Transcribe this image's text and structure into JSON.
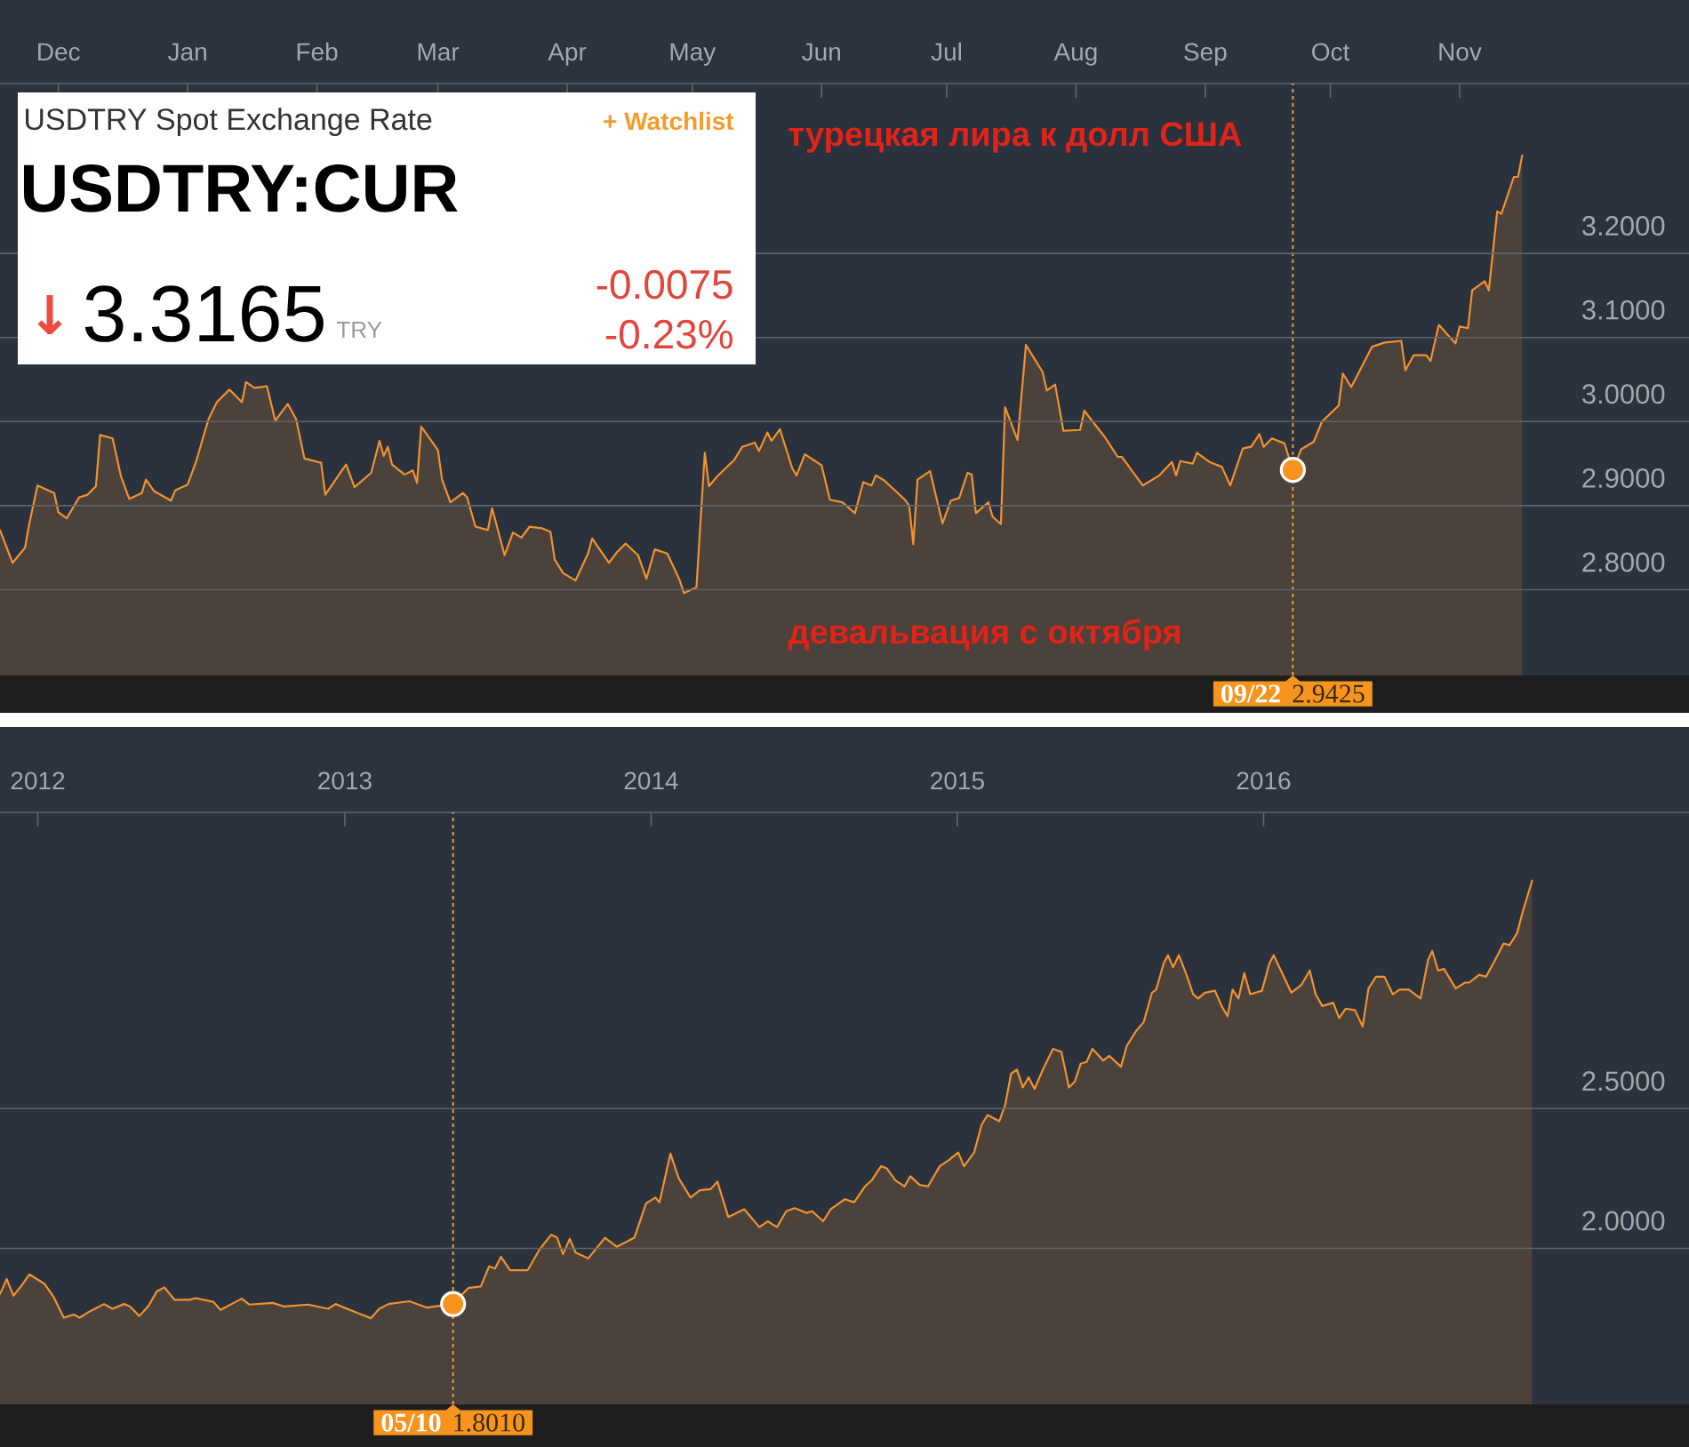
{
  "chart_data": [
    {
      "type": "area",
      "title": "USDTRY Spot Exchange Rate",
      "subtitle": "USDTRY:CUR",
      "series": [
        {
          "color": "#f29130",
          "x": [
            "2015-11-17",
            "2015-11-20",
            "2015-11-23",
            "2015-11-24",
            "2015-11-26",
            "2015-11-30",
            "2015-12-01",
            "2015-12-03",
            "2015-12-06",
            "2015-12-08",
            "2015-12-10",
            "2015-12-11",
            "2015-12-14",
            "2015-12-16",
            "2015-12-18",
            "2015-12-21",
            "2015-12-22",
            "2015-12-24",
            "2015-12-28",
            "2015-12-29",
            "2016-01-01",
            "2016-01-03",
            "2016-01-06",
            "2016-01-08",
            "2016-01-11",
            "2016-01-14",
            "2016-01-15",
            "2016-01-17",
            "2016-01-20",
            "2016-01-22",
            "2016-01-25",
            "2016-01-27",
            "2016-01-29",
            "2016-02-02",
            "2016-02-03",
            "2016-02-07",
            "2016-02-08",
            "2016-02-10",
            "2016-02-14",
            "2016-02-16",
            "2016-02-17",
            "2016-02-18",
            "2016-02-19",
            "2016-02-22",
            "2016-02-24",
            "2016-02-25",
            "2016-02-26",
            "2016-03-01",
            "2016-03-02",
            "2016-03-04",
            "2016-03-07",
            "2016-03-08",
            "2016-03-10",
            "2016-03-13",
            "2016-03-14",
            "2016-03-17",
            "2016-03-19",
            "2016-03-21",
            "2016-03-23",
            "2016-03-26",
            "2016-03-28",
            "2016-03-29",
            "2016-03-31",
            "2016-04-03",
            "2016-04-06",
            "2016-04-07",
            "2016-04-11",
            "2016-04-13",
            "2016-04-15",
            "2016-04-18",
            "2016-04-20",
            "2016-04-22",
            "2016-04-25",
            "2016-04-27",
            "2016-04-28",
            "2016-04-29",
            "2016-05-02",
            "2016-05-04",
            "2016-05-05",
            "2016-05-07",
            "2016-05-11",
            "2016-05-13",
            "2016-05-16",
            "2016-05-17",
            "2016-05-19",
            "2016-05-20",
            "2016-05-22",
            "2016-05-25",
            "2016-05-26",
            "2016-05-28",
            "2016-06-01",
            "2016-06-03",
            "2016-06-06",
            "2016-06-09",
            "2016-06-11",
            "2016-06-13",
            "2016-06-14",
            "2016-06-16",
            "2016-06-21",
            "2016-06-22",
            "2016-06-23",
            "2016-06-24",
            "2016-06-27",
            "2016-06-30",
            "2016-07-02",
            "2016-07-04",
            "2016-07-06",
            "2016-07-07",
            "2016-07-08",
            "2016-07-11",
            "2016-07-12",
            "2016-07-14",
            "2016-07-15",
            "2016-07-18",
            "2016-07-20",
            "2016-07-24",
            "2016-07-25",
            "2016-07-27",
            "2016-07-29",
            "2016-08-02",
            "2016-08-03",
            "2016-08-05",
            "2016-08-08",
            "2016-08-11",
            "2016-08-12",
            "2016-08-17",
            "2016-08-21",
            "2016-08-24",
            "2016-08-25",
            "2016-08-26",
            "2016-08-29",
            "2016-08-30",
            "2016-09-02",
            "2016-09-05",
            "2016-09-07",
            "2016-09-10",
            "2016-09-12",
            "2016-09-14",
            "2016-09-15",
            "2016-09-17",
            "2016-09-20",
            "2016-09-22",
            "2016-09-24",
            "2016-09-27",
            "2016-09-29",
            "2016-10-03",
            "2016-10-04",
            "2016-10-06",
            "2016-10-11",
            "2016-10-14",
            "2016-10-18",
            "2016-10-19",
            "2016-10-21",
            "2016-10-24",
            "2016-10-25",
            "2016-10-27",
            "2016-10-29",
            "2016-10-31",
            "2016-11-01",
            "2016-11-03",
            "2016-11-04",
            "2016-11-07",
            "2016-11-08",
            "2016-11-10",
            "2016-11-11",
            "2016-11-14",
            "2016-11-15",
            "2016-11-16"
          ],
          "values": [
            2.871,
            2.832,
            2.85,
            2.878,
            2.924,
            2.915,
            2.892,
            2.885,
            2.91,
            2.913,
            2.923,
            2.984,
            2.98,
            2.935,
            2.908,
            2.915,
            2.931,
            2.917,
            2.906,
            2.918,
            2.925,
            2.952,
            3.003,
            3.023,
            3.038,
            3.023,
            3.047,
            3.04,
            3.042,
            3.001,
            3.021,
            3.003,
            2.956,
            2.951,
            2.913,
            2.942,
            2.949,
            2.922,
            2.939,
            2.977,
            2.959,
            2.97,
            2.949,
            2.937,
            2.942,
            2.927,
            2.994,
            2.966,
            2.931,
            2.904,
            2.915,
            2.91,
            2.875,
            2.871,
            2.897,
            2.841,
            2.868,
            2.862,
            2.875,
            2.873,
            2.869,
            2.836,
            2.82,
            2.811,
            2.843,
            2.861,
            2.832,
            2.845,
            2.855,
            2.841,
            2.813,
            2.848,
            2.843,
            2.822,
            2.811,
            2.796,
            2.803,
            2.963,
            2.923,
            2.935,
            2.954,
            2.97,
            2.975,
            2.965,
            2.987,
            2.977,
            2.991,
            2.944,
            2.936,
            2.961,
            2.948,
            2.907,
            2.904,
            2.891,
            2.928,
            2.924,
            2.936,
            2.93,
            2.907,
            2.9,
            2.854,
            2.931,
            2.941,
            2.879,
            2.906,
            2.909,
            2.939,
            2.937,
            2.891,
            2.904,
            2.887,
            2.878,
            3.017,
            2.978,
            3.091,
            3.059,
            3.037,
            3.044,
            2.989,
            2.99,
            3.013,
            3.0,
            2.981,
            2.958,
            2.958,
            2.924,
            2.936,
            2.952,
            2.936,
            2.953,
            2.95,
            2.963,
            2.952,
            2.946,
            2.924,
            2.968,
            2.97,
            2.985,
            2.97,
            2.98,
            2.974,
            2.9425,
            2.967,
            2.976,
            3.0,
            3.019,
            3.057,
            3.041,
            3.089,
            3.094,
            3.096,
            3.061,
            3.079,
            3.079,
            3.072,
            3.115,
            3.104,
            3.093,
            3.113,
            3.111,
            3.156,
            3.167,
            3.156,
            3.25,
            3.247,
            3.291,
            3.291,
            3.3165
          ]
        },
        {
          "type": "scatter",
          "color": "#f7941d",
          "marker": "circle",
          "x": [
            "2016-09-22"
          ],
          "values": [
            2.9425
          ]
        }
      ],
      "xlim": [
        "2015-11-17",
        "2016-12-26"
      ],
      "xticks": [
        {
          "value": "2015-12-01",
          "label": "Dec"
        },
        {
          "value": "2016-01-01",
          "label": "Jan"
        },
        {
          "value": "2016-02-01",
          "label": "Feb"
        },
        {
          "value": "2016-03-01",
          "label": "Mar"
        },
        {
          "value": "2016-04-01",
          "label": "Apr"
        },
        {
          "value": "2016-05-01",
          "label": "May"
        },
        {
          "value": "2016-06-01",
          "label": "Jun"
        },
        {
          "value": "2016-07-01",
          "label": "Jul"
        },
        {
          "value": "2016-08-01",
          "label": "Aug"
        },
        {
          "value": "2016-09-01",
          "label": "Sep"
        },
        {
          "value": "2016-10-01",
          "label": "Oct"
        },
        {
          "value": "2016-11-01",
          "label": "Nov"
        }
      ],
      "ylim": [
        2.698,
        3.402
      ],
      "yticks": [
        {
          "value": 2.8,
          "label": "2.8000"
        },
        {
          "value": 2.9,
          "label": "2.9000"
        },
        {
          "value": 3.0,
          "label": "3.0000"
        },
        {
          "value": 3.1,
          "label": "3.1000"
        },
        {
          "value": 3.2,
          "label": "3.2000"
        }
      ],
      "grid": "y",
      "ref_lines": [
        {
          "axis": "x",
          "value": "2016-09-22",
          "color": "#e8a33d",
          "line_style": "dotted"
        }
      ],
      "annotations": [
        "+ Watchlist",
        "↓",
        "3.3165",
        "TRY",
        "-0.0075",
        "-0.23%",
        "турецкая лира к долл США",
        "девальвация с октября",
        "09/22",
        "2.9425"
      ]
    },
    {
      "type": "area",
      "series": [
        {
          "color": "#f29130",
          "x": [
            "2011-11-17",
            "2011-11-25",
            "2011-12-03",
            "2011-12-12",
            "2011-12-22",
            "2012-01-09",
            "2012-01-20",
            "2012-02-01",
            "2012-02-13",
            "2012-02-20",
            "2012-03-02",
            "2012-03-20",
            "2012-03-30",
            "2012-04-13",
            "2012-04-20",
            "2012-05-01",
            "2012-05-12",
            "2012-05-22",
            "2012-05-31",
            "2012-06-12",
            "2012-06-30",
            "2012-07-07",
            "2012-07-28",
            "2012-08-06",
            "2012-08-19",
            "2012-08-31",
            "2012-09-09",
            "2012-10-07",
            "2012-10-21",
            "2012-11-18",
            "2012-12-12",
            "2012-12-21",
            "2013-01-07",
            "2013-01-21",
            "2013-02-01",
            "2013-02-11",
            "2013-02-22",
            "2013-03-19",
            "2013-04-09",
            "2013-05-10",
            "2013-05-28",
            "2013-06-12",
            "2013-06-22",
            "2013-06-29",
            "2013-07-06",
            "2013-07-17",
            "2013-08-07",
            "2013-08-21",
            "2013-09-04",
            "2013-09-11",
            "2013-09-18",
            "2013-09-26",
            "2013-10-03",
            "2013-10-18",
            "2013-11-07",
            "2013-11-21",
            "2013-12-12",
            "2013-12-26",
            "2014-01-06",
            "2014-01-11",
            "2014-01-24",
            "2014-02-03",
            "2014-02-17",
            "2014-02-28",
            "2014-03-13",
            "2014-03-21",
            "2014-04-03",
            "2014-04-22",
            "2014-05-10",
            "2014-05-20",
            "2014-05-31",
            "2014-06-11",
            "2014-06-21",
            "2014-07-05",
            "2014-07-12",
            "2014-07-25",
            "2014-08-03",
            "2014-08-20",
            "2014-08-31",
            "2014-09-13",
            "2014-09-21",
            "2014-10-02",
            "2014-10-09",
            "2014-10-19",
            "2014-10-30",
            "2014-11-06",
            "2014-11-17",
            "2014-11-27",
            "2014-12-11",
            "2014-12-22",
            "2015-01-02",
            "2015-01-09",
            "2015-01-21",
            "2015-01-30",
            "2015-02-06",
            "2015-02-20",
            "2015-02-27",
            "2015-03-06",
            "2015-03-13",
            "2015-03-20",
            "2015-03-27",
            "2015-04-03",
            "2015-04-13",
            "2015-04-25",
            "2015-05-05",
            "2015-05-14",
            "2015-05-21",
            "2015-05-28",
            "2015-06-04",
            "2015-06-11",
            "2015-06-24",
            "2015-07-01",
            "2015-07-15",
            "2015-07-22",
            "2015-08-02",
            "2015-08-11",
            "2015-08-21",
            "2015-08-26",
            "2015-09-04",
            "2015-09-09",
            "2015-09-15",
            "2015-09-22",
            "2015-10-01",
            "2015-10-09",
            "2015-10-15",
            "2015-10-23",
            "2015-11-04",
            "2015-11-12",
            "2015-11-19",
            "2015-11-25",
            "2015-12-02",
            "2015-12-09",
            "2015-12-16",
            "2015-12-30",
            "2016-01-08",
            "2016-01-13",
            "2016-01-23",
            "2016-02-03",
            "2016-02-15",
            "2016-02-25",
            "2016-03-03",
            "2016-03-11",
            "2016-03-24",
            "2016-03-31",
            "2016-04-08",
            "2016-04-19",
            "2016-04-28",
            "2016-05-05",
            "2016-05-14",
            "2016-05-24",
            "2016-06-03",
            "2016-06-11",
            "2016-06-22",
            "2016-07-06",
            "2016-07-15",
            "2016-07-20",
            "2016-07-27",
            "2016-08-03",
            "2016-08-17",
            "2016-08-28",
            "2016-09-02",
            "2016-09-14",
            "2016-09-22",
            "2016-10-01",
            "2016-10-13",
            "2016-10-20",
            "2016-10-29",
            "2016-11-05",
            "2016-11-16"
          ],
          "values": [
            1.837,
            1.89,
            1.831,
            1.864,
            1.907,
            1.873,
            1.826,
            1.752,
            1.763,
            1.752,
            1.773,
            1.801,
            1.784,
            1.801,
            1.792,
            1.758,
            1.794,
            1.847,
            1.86,
            1.816,
            1.816,
            1.822,
            1.809,
            1.78,
            1.801,
            1.82,
            1.799,
            1.805,
            1.792,
            1.799,
            1.784,
            1.801,
            1.78,
            1.763,
            1.75,
            1.784,
            1.801,
            1.811,
            1.788,
            1.801,
            1.858,
            1.864,
            1.936,
            1.928,
            1.97,
            1.922,
            1.922,
            1.996,
            2.049,
            2.038,
            1.979,
            2.034,
            1.985,
            1.964,
            2.038,
            2.006,
            2.038,
            2.161,
            2.182,
            2.165,
            2.339,
            2.25,
            2.182,
            2.208,
            2.212,
            2.239,
            2.112,
            2.14,
            2.076,
            2.097,
            2.076,
            2.133,
            2.144,
            2.127,
            2.133,
            2.097,
            2.14,
            2.176,
            2.165,
            2.222,
            2.244,
            2.294,
            2.286,
            2.244,
            2.222,
            2.258,
            2.227,
            2.222,
            2.294,
            2.316,
            2.343,
            2.294,
            2.343,
            2.443,
            2.477,
            2.455,
            2.513,
            2.625,
            2.64,
            2.576,
            2.612,
            2.57,
            2.64,
            2.714,
            2.703,
            2.576,
            2.597,
            2.661,
            2.667,
            2.714,
            2.672,
            2.689,
            2.65,
            2.725,
            2.778,
            2.809,
            2.915,
            2.926,
            3.021,
            3.049,
            3.006,
            3.049,
            2.979,
            2.909,
            2.894,
            2.915,
            2.922,
            2.867,
            2.831,
            2.926,
            2.894,
            2.985,
            2.909,
            2.922,
            3.021,
            3.049,
            2.985,
            2.915,
            2.943,
            2.994,
            2.909,
            2.867,
            2.879,
            2.824,
            2.858,
            2.852,
            2.794,
            2.93,
            2.972,
            2.972,
            2.909,
            2.926,
            2.926,
            2.894,
            3.032,
            3.064,
            2.994,
            3.0,
            2.93,
            2.951,
            2.951,
            2.979,
            2.972,
            3.021,
            3.091,
            3.085,
            3.127,
            3.206,
            3.316
          ]
        },
        {
          "type": "scatter",
          "color": "#f7941d",
          "marker": "circle",
          "x": [
            "2013-05-10"
          ],
          "values": [
            1.801
          ]
        }
      ],
      "xlim": [
        "2011-11-17",
        "2017-05-22"
      ],
      "xticks": [
        {
          "value": "2012-01-01",
          "label": "2012"
        },
        {
          "value": "2013-01-01",
          "label": "2013"
        },
        {
          "value": "2014-01-01",
          "label": "2014"
        },
        {
          "value": "2015-01-01",
          "label": "2015"
        },
        {
          "value": "2016-01-01",
          "label": "2016"
        }
      ],
      "ylim": [
        1.442,
        3.56
      ],
      "yticks": [
        {
          "value": 2.0,
          "label": "2.0000"
        },
        {
          "value": 2.5,
          "label": "2.5000"
        }
      ],
      "grid": "y",
      "ref_lines": [
        {
          "axis": "x",
          "value": "2013-05-10",
          "color": "#e8a33d",
          "line_style": "dotted"
        }
      ],
      "annotations": [
        "05/10",
        "1.8010"
      ]
    }
  ]
}
